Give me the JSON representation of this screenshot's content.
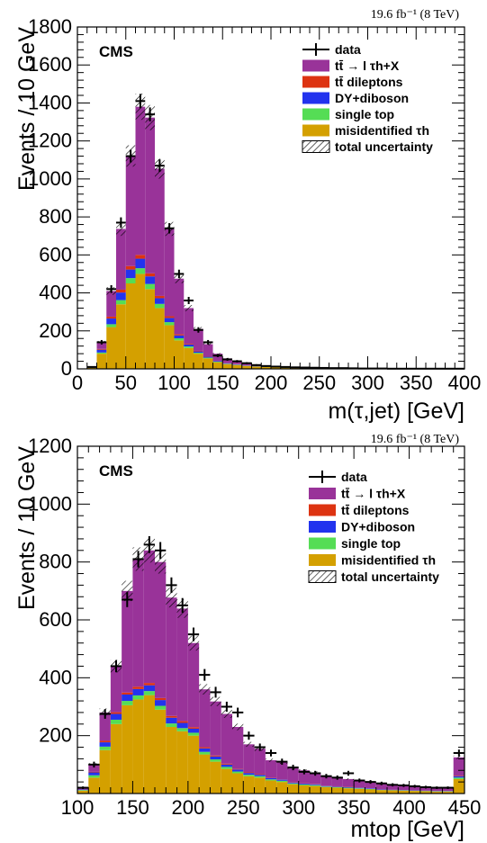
{
  "colors": {
    "ttbar_ltau": "#993399",
    "ttbar_dilepton": "#dd3311",
    "dy_diboson": "#2233ee",
    "single_top": "#55dd55",
    "misid": "#d4a000",
    "data": "#000000"
  },
  "chart_data": [
    {
      "type": "bar",
      "stacked": true,
      "cms_label": "CMS",
      "lumi_label": "19.6 fb⁻¹ (8 TeV)",
      "xlabel": "m(τ,jet) [GeV]",
      "ylabel": "Events / 10 GeV",
      "xlim": [
        0,
        400
      ],
      "ylim": [
        0,
        1800
      ],
      "bin_width": 10,
      "xticks": [
        "0",
        "50",
        "100",
        "150",
        "200",
        "250",
        "300",
        "350",
        "400"
      ],
      "yticks": [
        "0",
        "200",
        "400",
        "600",
        "800",
        "1000",
        "1200",
        "1400",
        "1600",
        "1800"
      ],
      "legend": [
        {
          "key": "data",
          "label": "data"
        },
        {
          "key": "ttbar_ltau",
          "label": "tt̄ → l τh+X"
        },
        {
          "key": "ttbar_dilepton",
          "label": "tt̄ dileptons"
        },
        {
          "key": "dy_diboson",
          "label": "DY+diboson"
        },
        {
          "key": "single_top",
          "label": "single top"
        },
        {
          "key": "misid",
          "label": "misidentified τh"
        },
        {
          "key": "uncertainty",
          "label": "total uncertainty"
        }
      ],
      "x": [
        5,
        15,
        25,
        35,
        45,
        55,
        65,
        75,
        85,
        95,
        105,
        115,
        125,
        135,
        145,
        155,
        165,
        175,
        185,
        195,
        205,
        215,
        225,
        235,
        245,
        255,
        265,
        275,
        285,
        295,
        305,
        315,
        325,
        335,
        345,
        355,
        365,
        375,
        385,
        395
      ],
      "series": [
        {
          "key": "misid",
          "values": [
            0,
            5,
            80,
            220,
            340,
            450,
            500,
            420,
            320,
            230,
            150,
            110,
            80,
            55,
            35,
            25,
            20,
            15,
            12,
            10,
            8,
            6,
            5,
            5,
            4,
            3,
            3,
            3,
            2,
            2,
            2,
            2,
            1,
            1,
            1,
            1,
            1,
            1,
            1,
            1
          ]
        },
        {
          "key": "single_top",
          "values": [
            0,
            1,
            6,
            15,
            22,
            28,
            30,
            27,
            22,
            16,
            11,
            8,
            5,
            4,
            3,
            2,
            2,
            1,
            1,
            1,
            1,
            1,
            1,
            1,
            0,
            0,
            0,
            0,
            0,
            0,
            0,
            0,
            0,
            0,
            0,
            0,
            0,
            0,
            0,
            0
          ]
        },
        {
          "key": "dy_diboson",
          "values": [
            0,
            1,
            15,
            30,
            40,
            45,
            50,
            40,
            30,
            22,
            15,
            10,
            7,
            5,
            4,
            3,
            2,
            2,
            1,
            1,
            1,
            1,
            1,
            1,
            0,
            0,
            0,
            0,
            0,
            0,
            0,
            0,
            0,
            0,
            0,
            0,
            0,
            0,
            0,
            0
          ]
        },
        {
          "key": "ttbar_dilepton",
          "values": [
            0,
            1,
            4,
            10,
            15,
            18,
            20,
            16,
            12,
            9,
            6,
            4,
            3,
            2,
            1,
            1,
            1,
            1,
            0,
            0,
            0,
            0,
            0,
            0,
            0,
            0,
            0,
            0,
            0,
            0,
            0,
            0,
            0,
            0,
            0,
            0,
            0,
            0,
            0,
            0
          ]
        },
        {
          "key": "ttbar_ltau",
          "values": [
            0,
            2,
            35,
            135,
            320,
            580,
            780,
            820,
            670,
            460,
            293,
            188,
            115,
            64,
            37,
            24,
            15,
            9,
            6,
            4,
            3,
            2,
            2,
            1,
            1,
            1,
            1,
            1,
            1,
            0,
            0,
            0,
            0,
            0,
            0,
            0,
            0,
            0,
            0,
            0
          ]
        }
      ],
      "data_points": [
        0,
        10,
        140,
        420,
        770,
        1120,
        1410,
        1340,
        1070,
        740,
        500,
        360,
        205,
        140,
        70,
        50,
        40,
        30,
        20,
        15,
        12,
        10,
        8,
        7,
        6,
        5,
        4,
        4,
        3,
        2,
        2,
        2,
        1,
        1,
        1,
        1,
        1,
        1,
        1,
        1
      ]
    },
    {
      "type": "bar",
      "stacked": true,
      "cms_label": "CMS",
      "lumi_label": "19.6 fb⁻¹ (8 TeV)",
      "xlabel": "mtop [GeV]",
      "ylabel": "Events / 10 GeV",
      "xlim": [
        100,
        450
      ],
      "ylim": [
        0,
        1200
      ],
      "bin_width": 10,
      "xticks": [
        "100",
        "150",
        "200",
        "250",
        "300",
        "350",
        "400",
        "450"
      ],
      "yticks": [
        "200",
        "400",
        "600",
        "800",
        "1000",
        "1200"
      ],
      "legend": [
        {
          "key": "data",
          "label": "data"
        },
        {
          "key": "ttbar_ltau",
          "label": "tt̄ → l τh+X"
        },
        {
          "key": "ttbar_dilepton",
          "label": "tt̄ dileptons"
        },
        {
          "key": "dy_diboson",
          "label": "DY+diboson"
        },
        {
          "key": "single_top",
          "label": "single top"
        },
        {
          "key": "misid",
          "label": "misidentified τh"
        },
        {
          "key": "uncertainty",
          "label": "total uncertainty"
        }
      ],
      "x": [
        105,
        115,
        125,
        135,
        145,
        155,
        165,
        175,
        185,
        195,
        205,
        215,
        225,
        235,
        245,
        255,
        265,
        275,
        285,
        295,
        305,
        315,
        325,
        335,
        345,
        355,
        365,
        375,
        385,
        395,
        405,
        415,
        425,
        435,
        445
      ],
      "series": [
        {
          "key": "misid",
          "values": [
            10,
            55,
            150,
            240,
            305,
            325,
            340,
            290,
            230,
            215,
            200,
            135,
            110,
            85,
            70,
            60,
            55,
            45,
            40,
            32,
            28,
            26,
            22,
            20,
            18,
            16,
            14,
            12,
            11,
            10,
            9,
            8,
            7,
            7,
            50
          ]
        },
        {
          "key": "single_top",
          "values": [
            2,
            8,
            12,
            15,
            15,
            14,
            14,
            13,
            12,
            11,
            10,
            9,
            8,
            7,
            6,
            5,
            5,
            4,
            4,
            3,
            3,
            3,
            2,
            2,
            2,
            2,
            2,
            1,
            1,
            1,
            1,
            1,
            1,
            1,
            5
          ]
        },
        {
          "key": "dy_diboson",
          "values": [
            2,
            10,
            15,
            20,
            22,
            22,
            20,
            20,
            20,
            18,
            14,
            12,
            10,
            8,
            7,
            6,
            5,
            4,
            4,
            3,
            3,
            3,
            2,
            2,
            2,
            2,
            2,
            1,
            1,
            1,
            1,
            1,
            1,
            1,
            5
          ]
        },
        {
          "key": "ttbar_dilepton",
          "values": [
            1,
            2,
            5,
            6,
            7,
            8,
            8,
            7,
            6,
            6,
            5,
            4,
            3,
            3,
            2,
            2,
            2,
            1,
            1,
            1,
            1,
            1,
            1,
            1,
            1,
            1,
            0,
            0,
            0,
            0,
            0,
            0,
            0,
            0,
            2
          ]
        },
        {
          "key": "ttbar_ltau",
          "values": [
            5,
            25,
            98,
            159,
            351,
            441,
            458,
            470,
            409,
            389,
            291,
            200,
            187,
            172,
            145,
            97,
            88,
            61,
            59,
            48,
            45,
            40,
            35,
            30,
            27,
            24,
            22,
            19,
            17,
            15,
            14,
            12,
            11,
            11,
            63
          ]
        }
      ],
      "data_points": [
        20,
        100,
        275,
        440,
        670,
        810,
        860,
        840,
        720,
        650,
        550,
        410,
        350,
        300,
        280,
        200,
        160,
        140,
        110,
        90,
        75,
        70,
        60,
        55,
        70,
        45,
        40,
        35,
        30,
        28,
        25,
        22,
        20,
        20,
        140
      ]
    }
  ]
}
